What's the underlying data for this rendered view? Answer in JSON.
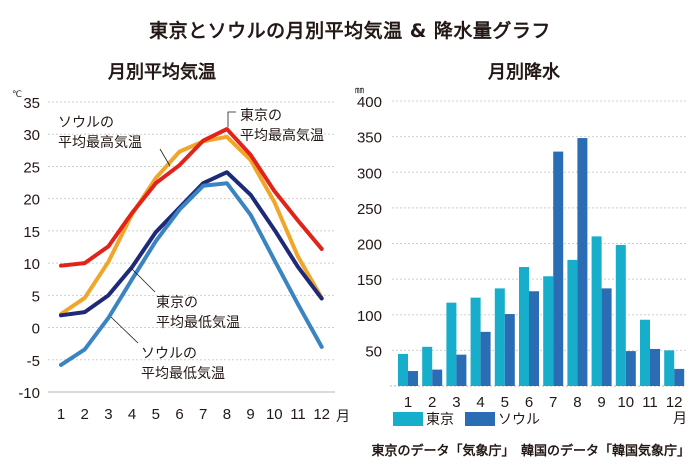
{
  "title": "東京とソウルの月別平均気温 & 降水量グラフ",
  "source_note": "東京のデータ「気象庁」　韓国のデータ「韓国気象庁」",
  "chart_data": [
    {
      "type": "line",
      "title": "月別平均気温",
      "ylabel": "℃",
      "xlabel": "月",
      "ylim": [
        -10,
        35
      ],
      "yticks": [
        "35",
        "30",
        "25",
        "20",
        "15",
        "10",
        "5",
        "0",
        "-5",
        "-10"
      ],
      "ytick_values": [
        35,
        30,
        25,
        20,
        15,
        10,
        5,
        0,
        -5,
        -10
      ],
      "categories": [
        "1",
        "2",
        "3",
        "4",
        "5",
        "6",
        "7",
        "8",
        "9",
        "10",
        "11",
        "12"
      ],
      "x_unit": "月",
      "grid": true,
      "series": [
        {
          "name": "ソウルの平均最高気温",
          "label_lines": [
            "ソウルの",
            "平均最高気温"
          ],
          "color": "#F0A629",
          "values": [
            2.1,
            4.6,
            10.2,
            17.6,
            23.2,
            27.3,
            28.9,
            29.6,
            26.0,
            19.5,
            11.0,
            4.6
          ]
        },
        {
          "name": "東京の平均最高気温",
          "label_lines": [
            "東京の",
            "平均最高気温"
          ],
          "color": "#E2231A",
          "values": [
            9.6,
            10.0,
            12.6,
            17.8,
            22.4,
            25.2,
            29.0,
            30.8,
            26.8,
            21.2,
            16.6,
            12.2
          ]
        },
        {
          "name": "東京の平均最低気温",
          "label_lines": [
            "東京の",
            "平均最低気温"
          ],
          "color": "#1E2A78",
          "values": [
            1.9,
            2.4,
            5.0,
            9.4,
            14.8,
            18.6,
            22.4,
            24.1,
            20.6,
            15.2,
            9.4,
            4.5
          ]
        },
        {
          "name": "ソウルの平均最低気温",
          "label_lines": [
            "ソウルの",
            "平均最低気温"
          ],
          "color": "#3A84C1",
          "values": [
            -5.8,
            -3.4,
            1.5,
            7.5,
            13.4,
            18.3,
            22.0,
            22.4,
            17.5,
            10.5,
            3.6,
            -3.0
          ]
        }
      ]
    },
    {
      "type": "bar",
      "title": "月別降水",
      "ylabel": "㎜",
      "xlabel": "月",
      "ylim": [
        0,
        400
      ],
      "yticks": [
        "400",
        "350",
        "300",
        "250",
        "200",
        "150",
        "100",
        "50"
      ],
      "ytick_values": [
        400,
        350,
        300,
        250,
        200,
        150,
        100,
        50
      ],
      "categories": [
        "1",
        "2",
        "3",
        "4",
        "5",
        "6",
        "7",
        "8",
        "9",
        "10",
        "11",
        "12"
      ],
      "x_unit": "月",
      "grid": true,
      "legend": "bottom-left",
      "series": [
        {
          "name": "東京",
          "color": "#16AECB",
          "values": [
            45,
            55,
            117,
            124,
            137,
            167,
            154,
            177,
            210,
            198,
            93,
            50
          ]
        },
        {
          "name": "ソウル",
          "color": "#2B6DB5",
          "values": [
            21,
            23,
            44,
            76,
            101,
            133,
            329,
            348,
            137,
            49,
            52,
            24
          ]
        }
      ]
    }
  ]
}
